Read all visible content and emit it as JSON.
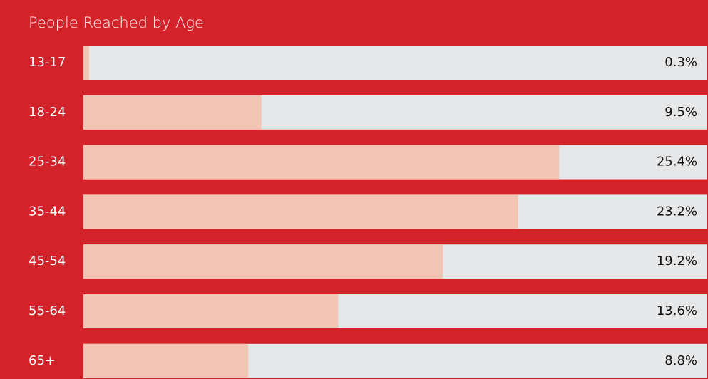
{
  "chart_data": {
    "type": "bar",
    "orientation": "horizontal",
    "title": "People Reached by Age",
    "categories": [
      "13-17",
      "18-24",
      "25-34",
      "35-44",
      "45-54",
      "55-64",
      "65+"
    ],
    "values": [
      0.3,
      9.5,
      25.4,
      23.2,
      19.2,
      13.6,
      8.8
    ],
    "value_labels": [
      "0.3%",
      "9.5%",
      "25.4%",
      "23.2%",
      "19.2%",
      "13.6%",
      "8.8%"
    ],
    "color": "#f2c4b4",
    "track_color": "#e6e7e8",
    "background": "#d3232a",
    "xlim": [
      0,
      33.3
    ]
  }
}
